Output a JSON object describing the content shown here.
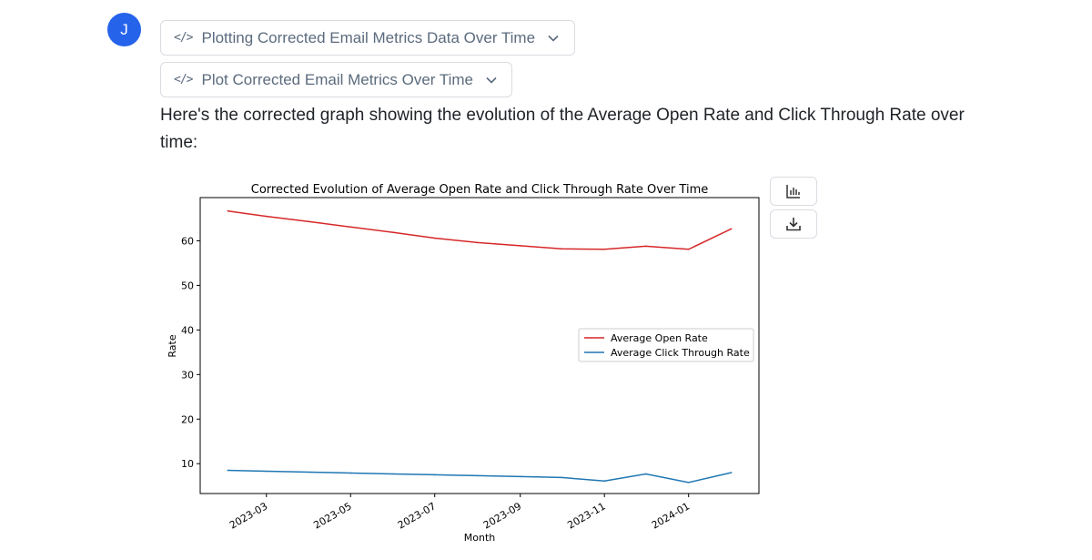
{
  "user": {
    "avatar_initial": "J"
  },
  "tools": [
    {
      "label": "Plotting Corrected Email Metrics Data Over Time"
    },
    {
      "label": "Plot Corrected Email Metrics Over Time"
    }
  ],
  "message": {
    "text": "Here's the corrected graph showing the evolution of the Average Open Rate and Click Through Rate over time:"
  },
  "icons": {
    "code": "code-icon",
    "chevron": "chevron-down-icon",
    "chart": "bar-chart-icon",
    "download": "download-icon"
  },
  "chart_data": {
    "type": "line",
    "title": "Corrected Evolution of Average Open Rate and Click Through Rate Over Time",
    "xlabel": "Month",
    "ylabel": "Rate",
    "x": [
      "2023-02-01",
      "2023-03-01",
      "2023-04-01",
      "2023-05-01",
      "2023-06-01",
      "2023-07-01",
      "2023-08-01",
      "2023-09-01",
      "2023-10-01",
      "2023-11-01",
      "2023-12-01",
      "2024-01-01",
      "2024-02-01"
    ],
    "x_ticks": [
      "2023-03",
      "2023-05",
      "2023-07",
      "2023-09",
      "2023-11",
      "2024-01"
    ],
    "y_ticks": [
      10,
      20,
      30,
      40,
      50,
      60
    ],
    "ylim": [
      3.3,
      69.7
    ],
    "xlim": [
      "2023-01-12",
      "2024-02-21"
    ],
    "legend_position": "center-right",
    "grid": false,
    "series": [
      {
        "name": "Average Open Rate",
        "color": "#d62728",
        "values": [
          66.7,
          65.5,
          64.3,
          63.1,
          61.9,
          60.6,
          59.6,
          58.9,
          58.2,
          58.1,
          58.8,
          58.1,
          62.7
        ]
      },
      {
        "name": "Average Click Through Rate",
        "color": "#1f77b4",
        "values": [
          8.5,
          8.3,
          8.1,
          7.9,
          7.7,
          7.5,
          7.3,
          7.1,
          6.9,
          6.1,
          7.7,
          5.8,
          8.0
        ]
      }
    ]
  }
}
